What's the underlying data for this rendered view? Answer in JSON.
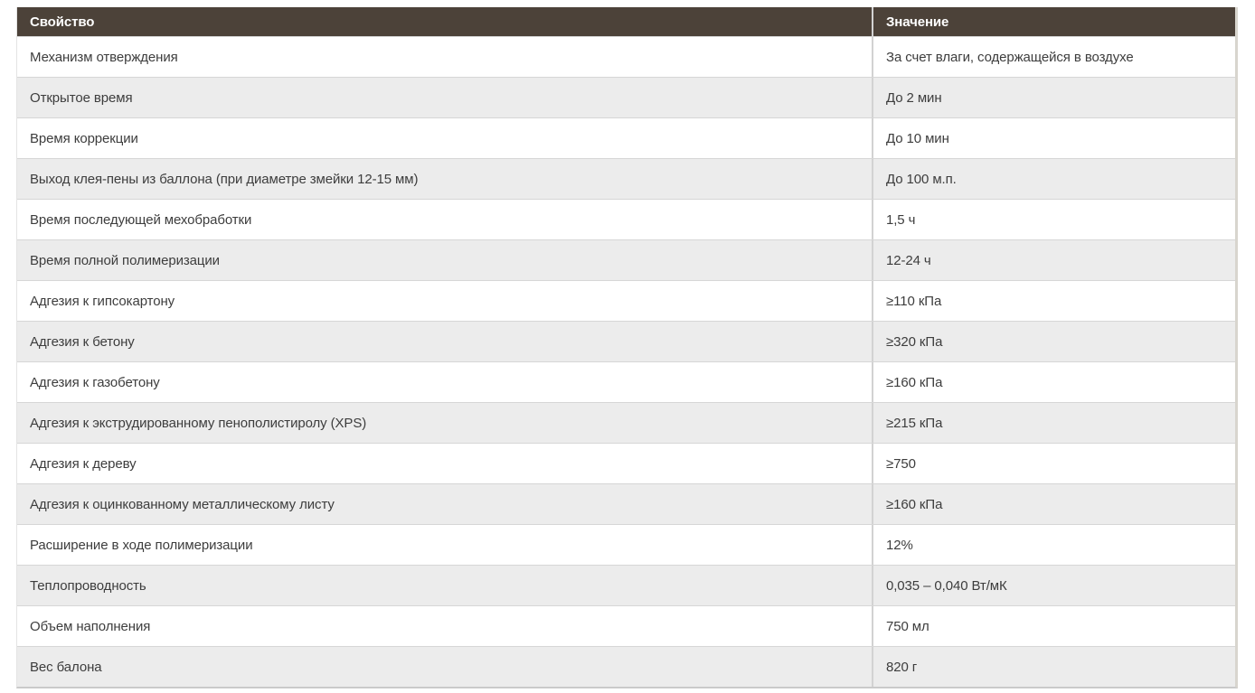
{
  "colors": {
    "header_bg": "#4c4239",
    "header_text": "#ffffff",
    "row_alt_bg": "#ececec",
    "row_border": "#d6d6d6",
    "col_separator": "#d2d2d2",
    "cell_text": "#3d3d3d"
  },
  "table": {
    "header": {
      "property": "Свойство",
      "value": "Значение"
    },
    "rows": [
      {
        "property": "Механизм отверждения",
        "value": "За счет влаги, содержащейся в воздухе"
      },
      {
        "property": "Открытое время",
        "value": "До 2 мин"
      },
      {
        "property": "Время коррекции",
        "value": "До 10 мин"
      },
      {
        "property": "Выход клея-пены из баллона (при диаметре змейки 12-15 мм)",
        "value": "До 100 м.п."
      },
      {
        "property": "Время последующей мехобработки",
        "value": "1,5 ч"
      },
      {
        "property": "Время полной полимеризации",
        "value": "12-24 ч"
      },
      {
        "property": "Адгезия к гипсокартону",
        "value": "≥110 кПа"
      },
      {
        "property": "Адгезия к бетону",
        "value": "≥320 кПа"
      },
      {
        "property": "Адгезия к газобетону",
        "value": "≥160 кПа"
      },
      {
        "property": "Адгезия к экструдированному пенополистиролу (XPS)",
        "value": "≥215 кПа"
      },
      {
        "property": "Адгезия к дереву",
        "value": "≥750"
      },
      {
        "property": "Адгезия к оцинкованному металлическому листу",
        "value": "≥160 кПа"
      },
      {
        "property": "Расширение в ходе полимеризации",
        "value": "12%"
      },
      {
        "property": "Теплопроводность",
        "value": "0,035 – 0,040 Вт/мК"
      },
      {
        "property": "Объем наполнения",
        "value": "750 мл"
      },
      {
        "property": "Вес балона",
        "value": "820 г"
      }
    ]
  }
}
